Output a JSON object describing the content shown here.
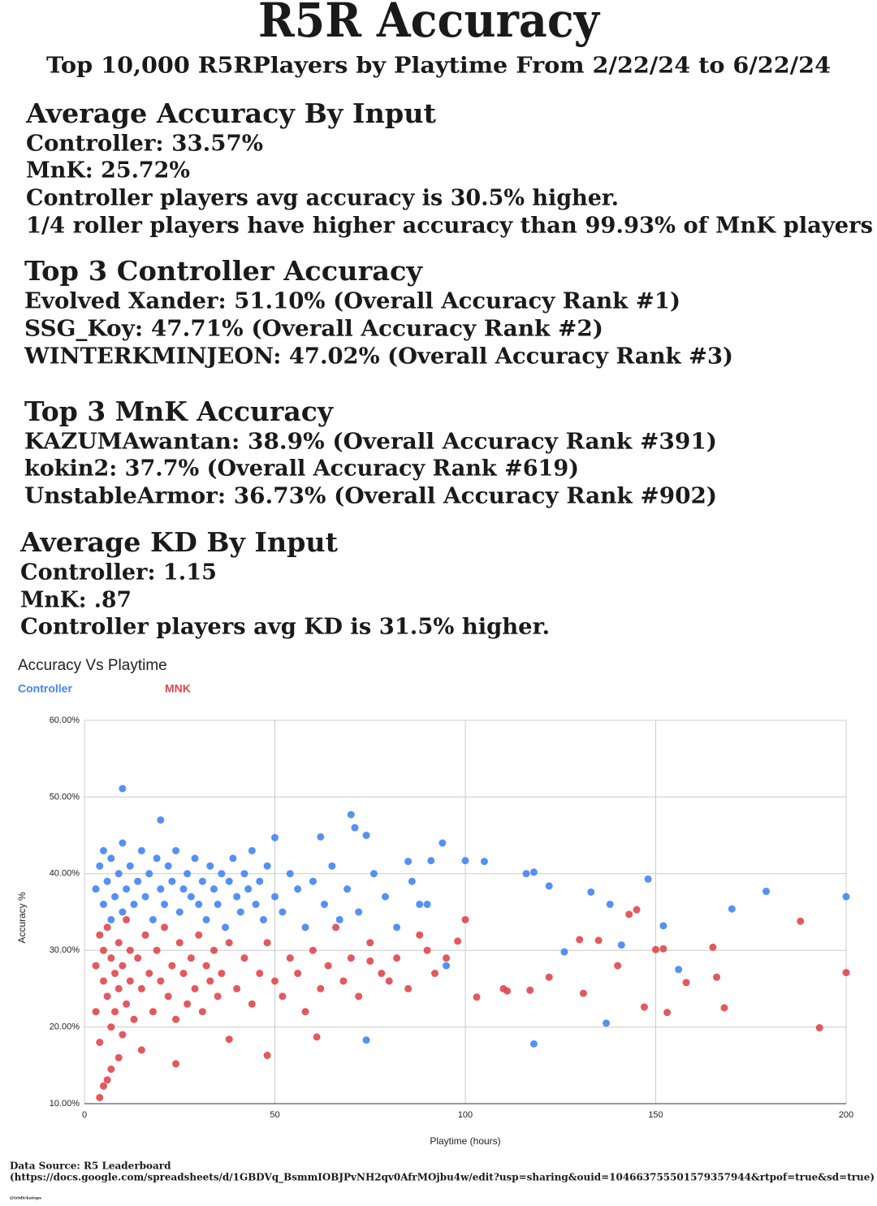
{
  "header": {
    "title": "R5R Accuracy",
    "subtitle": "Top 10,000 R5RPlayers by Playtime From 2/22/24 to 6/22/24"
  },
  "sections": [
    {
      "heading": "Average Accuracy By Input",
      "lines": [
        "Controller: 33.57%",
        "MnK: 25.72%",
        "Controller players avg accuracy is 30.5% higher.",
        "1/4 roller players have higher accuracy than 99.93% of MnK players"
      ]
    },
    {
      "heading": "Top 3 Controller Accuracy",
      "lines": [
        "Evolved Xander: 51.10% (Overall Accuracy Rank #1)",
        "SSG_Koy: 47.71% (Overall Accuracy Rank #2)",
        "WINTERKMINJEON: 47.02% (Overall Accuracy Rank #3)"
      ]
    },
    {
      "heading": "Top 3 MnK Accuracy",
      "lines": [
        "KAZUMAwantan: 38.9% (Overall Accuracy Rank #391)",
        "kokin2: 37.7% (Overall Accuracy Rank #619)",
        "UnstableArmor: 36.73% (Overall Accuracy Rank #902)"
      ]
    },
    {
      "heading": "Average KD By Input",
      "lines": [
        "Controller: 1.15",
        "MnK: .87",
        "Controller players avg KD is 31.5% higher."
      ]
    }
  ],
  "chart_data": {
    "type": "scatter",
    "title": "Accuracy Vs Playtime",
    "x_label": "Playtime (hours)",
    "y_label": "Accuracy %",
    "xlim": [
      0,
      200
    ],
    "xticks": [
      0,
      50,
      100,
      150,
      200
    ],
    "ylim": [
      10,
      60
    ],
    "yticks": [
      {
        "value": 10,
        "label": "10.00%"
      },
      {
        "value": 20,
        "label": "20.00%"
      },
      {
        "value": 30,
        "label": "30.00%"
      },
      {
        "value": 40,
        "label": "40.00%"
      },
      {
        "value": 50,
        "label": "50.00%"
      },
      {
        "value": 60,
        "label": "60.00%"
      }
    ],
    "grid": true,
    "series": [
      {
        "name": "Controller",
        "color": "#4285f4",
        "x": [
          3,
          4,
          5,
          5,
          6,
          7,
          7,
          8,
          9,
          10,
          10,
          11,
          12,
          13,
          14,
          15,
          16,
          17,
          18,
          19,
          20,
          21,
          22,
          23,
          24,
          25,
          26,
          27,
          28,
          29,
          30,
          31,
          32,
          33,
          34,
          35,
          36,
          37,
          38,
          39,
          40,
          41,
          42,
          43,
          44,
          45,
          46,
          47,
          48,
          50,
          52,
          54,
          56,
          58,
          60,
          63,
          65,
          67,
          69,
          72,
          76,
          79,
          82,
          86,
          90,
          10,
          20,
          70,
          71,
          74,
          50,
          62,
          94,
          148,
          179,
          200,
          170,
          152,
          156,
          118,
          74,
          137,
          100,
          105,
          116,
          118,
          133,
          138,
          141,
          126,
          122,
          95,
          88,
          85,
          91
        ],
        "values": [
          38,
          41,
          36,
          43,
          39,
          34,
          42,
          37,
          40,
          35,
          44,
          38,
          41,
          36,
          39,
          43,
          37,
          40,
          34,
          42,
          38,
          36,
          41,
          39,
          43,
          35,
          38,
          40,
          37,
          42,
          36,
          39,
          34,
          41,
          38,
          36,
          40,
          33,
          39,
          42,
          37,
          35,
          40,
          38,
          43,
          36,
          39,
          34,
          41,
          37,
          35,
          40,
          38,
          33,
          39,
          36,
          41,
          34,
          38,
          35,
          40,
          37,
          33,
          39,
          36,
          51.1,
          47,
          47.7,
          46,
          45,
          44.7,
          44.8,
          44,
          39.3,
          37.7,
          37,
          35.4,
          33.2,
          27.5,
          17.8,
          18.3,
          20.5,
          41.7,
          41.6,
          40,
          40.2,
          37.6,
          36,
          30.7,
          29.8,
          38.4,
          28,
          36,
          41.6,
          41.7
        ]
      },
      {
        "name": "MNK",
        "color": "#e0474c",
        "x": [
          3,
          3,
          4,
          4,
          5,
          5,
          6,
          6,
          7,
          7,
          8,
          8,
          9,
          9,
          10,
          10,
          11,
          11,
          12,
          12,
          13,
          14,
          15,
          16,
          17,
          18,
          19,
          20,
          21,
          22,
          23,
          24,
          25,
          26,
          27,
          28,
          29,
          30,
          31,
          32,
          33,
          34,
          35,
          36,
          38,
          40,
          42,
          44,
          46,
          48,
          50,
          52,
          54,
          56,
          58,
          60,
          62,
          64,
          66,
          68,
          70,
          72,
          75,
          78,
          82,
          85,
          88,
          92,
          95,
          188,
          200,
          193,
          168,
          165,
          166,
          152,
          150,
          153,
          158,
          147,
          145,
          143,
          135,
          140,
          130,
          131,
          117,
          111,
          103,
          110,
          122,
          98,
          100,
          4,
          5,
          6,
          7,
          9,
          15,
          24,
          38,
          61,
          48,
          75,
          80,
          90
        ],
        "values": [
          28,
          22,
          32,
          18,
          26,
          30,
          24,
          33,
          20,
          29,
          27,
          22,
          31,
          25,
          19,
          28,
          34,
          23,
          26,
          30,
          21,
          29,
          25,
          32,
          27,
          22,
          30,
          26,
          33,
          24,
          28,
          21,
          31,
          27,
          23,
          29,
          25,
          32,
          22,
          28,
          26,
          30,
          24,
          27,
          31,
          25,
          29,
          23,
          27,
          31,
          26,
          24,
          29,
          27,
          22,
          30,
          25,
          28,
          33,
          26,
          29,
          24,
          31,
          27,
          29,
          25,
          32,
          27,
          29,
          33.8,
          27.1,
          19.9,
          22.5,
          30.4,
          26.5,
          30.2,
          30.1,
          21.9,
          25.8,
          22.6,
          35.3,
          34.7,
          31.3,
          28,
          31.4,
          24.4,
          24.8,
          24.7,
          23.9,
          25,
          26.5,
          31.2,
          34,
          10.8,
          12.3,
          13.1,
          14.5,
          16,
          17,
          15.2,
          18.4,
          18.7,
          16.3,
          28.6,
          26,
          30
        ]
      }
    ]
  },
  "footer": {
    "source": "Data Source: R5 Leaderboard",
    "url": "(https://docs.google.com/spreadsheets/d/1GBDVq_BsmmIOBJPvNH2qv0AfrMOjbu4w/edit?usp=sharing&ouid=104663755501579357944&rtpof=true&sd=true)",
    "credit": "@tridickatops"
  }
}
